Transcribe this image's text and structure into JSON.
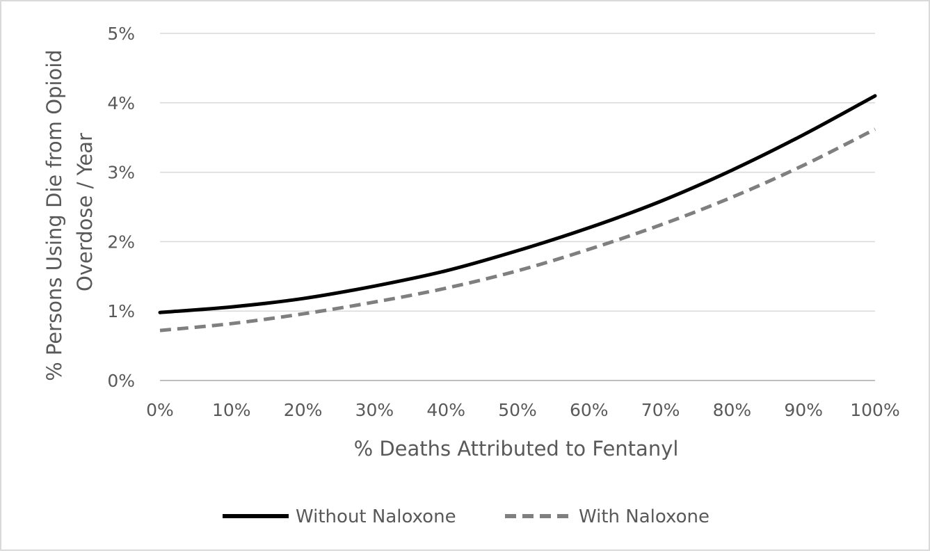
{
  "chart_data": {
    "type": "line",
    "title": "",
    "xlabel": "% Deaths Attributed to Fentanyl",
    "ylabel_lines": [
      "% Persons Using Die from Opioid",
      "Overdose / Year"
    ],
    "xlim": [
      0,
      100
    ],
    "ylim": [
      0,
      5
    ],
    "x_ticks": [
      "0%",
      "10%",
      "20%",
      "30%",
      "40%",
      "50%",
      "60%",
      "70%",
      "80%",
      "90%",
      "100%"
    ],
    "y_ticks": [
      "0%",
      "1%",
      "2%",
      "3%",
      "4%",
      "5%"
    ],
    "grid": "horizontal",
    "legend": "bottom",
    "x": [
      0,
      10,
      20,
      30,
      40,
      50,
      60,
      70,
      80,
      90,
      100
    ],
    "series": [
      {
        "name": "Without Naloxone",
        "color": "#000000",
        "style": "solid",
        "values": [
          0.98,
          1.06,
          1.18,
          1.36,
          1.58,
          1.87,
          2.2,
          2.58,
          3.03,
          3.54,
          4.1
        ]
      },
      {
        "name": "With Naloxone",
        "color": "#7f7f7f",
        "style": "dashed",
        "values": [
          0.72,
          0.82,
          0.96,
          1.13,
          1.33,
          1.58,
          1.89,
          2.24,
          2.64,
          3.1,
          3.62
        ]
      }
    ]
  }
}
